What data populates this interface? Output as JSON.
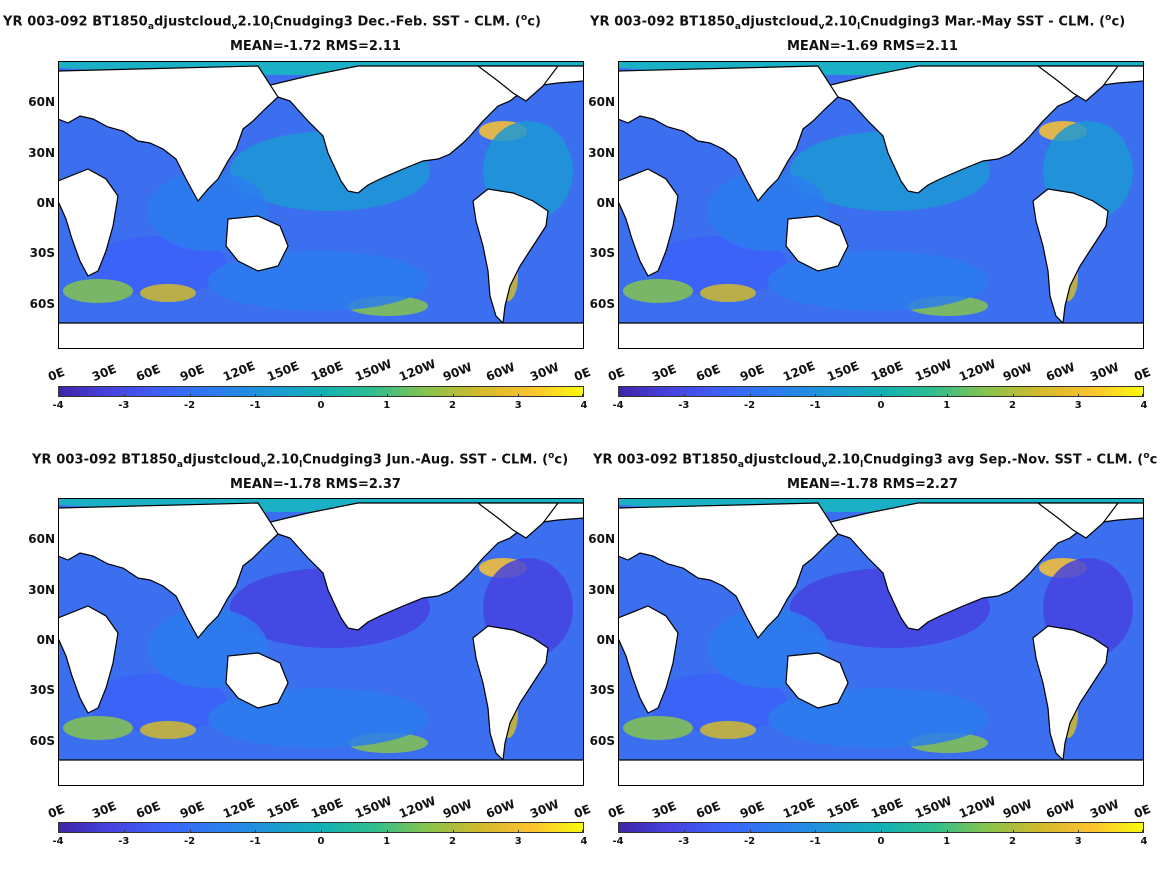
{
  "panels": [
    {
      "id": "djf",
      "title_pre": "YR 003-092 BT1850",
      "sub_a": "a",
      "title_mid": "djustcloud",
      "sub_v": "v",
      "title_mid2": "2.10",
      "sub_l": "l",
      "title_post": "Cnudging3  Dec.-Feb. SST - CLM. (",
      "sup_o": "o",
      "title_end": "c)",
      "stats": "MEAN=-1.72   RMS=2.11"
    },
    {
      "id": "mam",
      "title_pre": "YR 003-092 BT1850",
      "sub_a": "a",
      "title_mid": "djustcloud",
      "sub_v": "v",
      "title_mid2": "2.10",
      "sub_l": "l",
      "title_post": "Cnudging3 Mar.-May SST - CLM. (",
      "sup_o": "o",
      "title_end": "c)",
      "stats": "MEAN=-1.69   RMS=2.11"
    },
    {
      "id": "jja",
      "title_pre": "YR 003-092 BT1850",
      "sub_a": "a",
      "title_mid": "djustcloud",
      "sub_v": "v",
      "title_mid2": "2.10",
      "sub_l": "l",
      "title_post": "Cnudging3 Jun.-Aug. SST - CLM. (",
      "sup_o": "o",
      "title_end": "c)",
      "stats": "MEAN=-1.78   RMS=2.37"
    },
    {
      "id": "son",
      "title_pre": "YR 003-092 BT1850",
      "sub_a": "a",
      "title_mid": "djustcloud",
      "sub_v": "v",
      "title_mid2": "2.10",
      "sub_l": "l",
      "title_post": "Cnudging3 avg Sep.-Nov. SST - CLM. (",
      "sup_o": "o",
      "title_end": "c",
      "stats": "MEAN=-1.78   RMS=2.27"
    }
  ],
  "lat_labels": [
    "60N",
    "30N",
    "0N",
    "30S",
    "60S"
  ],
  "lon_labels": [
    "0E",
    "30E",
    "60E",
    "90E",
    "120E",
    "150E",
    "180E",
    "150W",
    "120W",
    "90W",
    "60W",
    "30W",
    "0E"
  ],
  "colorbar": {
    "ticks": [
      "-4",
      "-3",
      "-2",
      "-1",
      "0",
      "1",
      "2",
      "3",
      "4"
    ],
    "min": -4,
    "max": 4,
    "colors": [
      "#3e26a8",
      "#4743e0",
      "#3d62f8",
      "#2c7cef",
      "#1d98d5",
      "#12b0b6",
      "#2fbe8e",
      "#86c34f",
      "#d0ba2c",
      "#fbc330",
      "#f8fa0d"
    ]
  },
  "colors": {
    "ocean_base": "#3b6ff0",
    "arctic": "#17bcc0",
    "cold": "#3d2faa",
    "warm": "#e6d024",
    "land": "#ffffff"
  }
}
